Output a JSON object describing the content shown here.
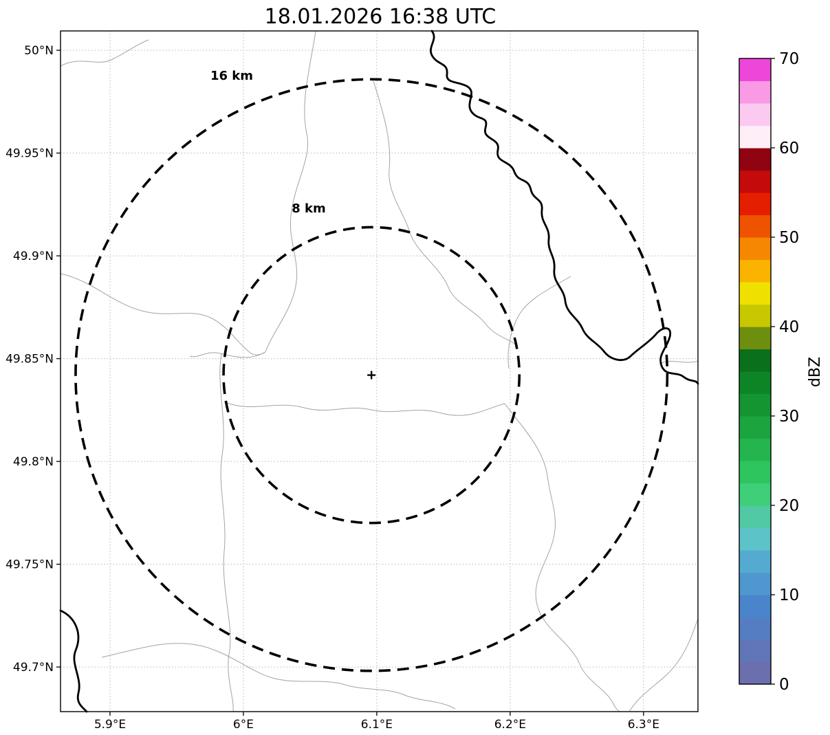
{
  "chart_data": {
    "type": "map",
    "title": "18.01.2026 16:38 UTC",
    "grid": true,
    "x_axis": {
      "tick_labels": [
        "5.9°E",
        "6°E",
        "6.1°E",
        "6.2°E",
        "6.3°E"
      ],
      "tick_values": [
        5.9,
        6.0,
        6.1,
        6.2,
        6.3
      ],
      "range": [
        5.8629,
        6.3408
      ]
    },
    "y_axis": {
      "tick_labels": [
        "49.7°N",
        "49.75°N",
        "49.8°N",
        "49.85°N",
        "49.9°N",
        "49.95°N",
        "50°N"
      ],
      "tick_values": [
        49.7,
        49.75,
        49.8,
        49.85,
        49.9,
        49.95,
        50.0
      ],
      "range": [
        49.6783,
        50.0094
      ]
    },
    "radar_center": {
      "lon": 6.096,
      "lat": 49.842,
      "marker": "+"
    },
    "range_rings": [
      {
        "label": "8 km",
        "radius_km": 8
      },
      {
        "label": "16 km",
        "radius_km": 16
      }
    ],
    "colorbar": {
      "label": "dBZ",
      "min": 0,
      "max": 70,
      "tick_values": [
        0,
        10,
        20,
        30,
        40,
        50,
        60,
        70
      ],
      "tick_labels": [
        "0",
        "10",
        "20",
        "30",
        "40",
        "50",
        "60",
        "70"
      ],
      "colors": [
        "#6b6fae",
        "#6076b8",
        "#557dc2",
        "#4a85cc",
        "#4f97cf",
        "#55aad2",
        "#5cc3c8",
        "#50c9a4",
        "#3fcf78",
        "#2ec55e",
        "#25b54e",
        "#1ca53f",
        "#149532",
        "#0d8527",
        "#0a701c",
        "#6e8f0e",
        "#c8c800",
        "#f0e000",
        "#fab400",
        "#f58800",
        "#ee5400",
        "#e61e00",
        "#c40a0a",
        "#8f0410",
        "#fdeef8",
        "#fccaf0",
        "#f89ae6",
        "#ef46da"
      ]
    }
  },
  "map": {
    "boundary_paths": [
      "M 88 96 C 118 80 142 98 164 86 C 184 76 200 64 216 58",
      "M 459 45 C 452 95 436 148 446 194 C 454 230 428 266 423 314 C 419 352 437 380 430 416 C 424 452 398 480 386 512",
      "M 386 512 C 362 526 338 518 320 514 C 300 509 288 522 276 518",
      "M 88 398 C 134 408 162 440 206 452 C 246 463 276 448 306 462 C 332 474 346 500 364 513 C 372 519 380 515 386 512",
      "M 330 586 C 370 600 402 582 442 593 C 480 603 502 588 540 596 C 576 604 602 590 642 601 C 682 611 702 596 734 587",
      "M 322 515 C 314 560 331 612 323 662 C 316 706 331 752 326 802 C 321 856 341 912 333 952 C 328 986 341 1016 339 1035",
      "M 148 956 C 200 944 242 930 286 938 C 330 946 362 976 396 986 C 432 996 470 986 502 996 C 532 1005 562 1000 586 1010 C 612 1021 640 1018 662 1031",
      "M 543 118 C 558 165 570 206 566 246 C 563 281 586 306 596 338 C 606 368 640 388 652 418 C 661 441 692 452 707 472 C 721 490 740 492 752 503",
      "M 830 402 C 800 420 772 432 756 456 C 744 476 736 506 740 536",
      "M 734 587 C 760 622 790 652 796 692 C 801 732 816 756 801 796 C 789 829 771 852 783 886 C 793 916 831 936 843 966 C 853 991 881 1002 891 1022 C 897 1033 900 1035 902 1035",
      "M 962 528 C 978 521 996 531 1015 525",
      "M 915 1035 C 936 1002 966 992 986 962 C 1000 944 1009 916 1015 900"
    ],
    "river_paths": [
      "M 628 45 C 638 58 620 68 629 82 C 637 95 652 91 650 108 C 648 122 667 118 680 126 C 694 135 676 150 686 163 C 696 176 711 168 706 186 C 701 204 728 200 724 218 C 720 238 742 232 748 250 C 754 266 768 258 772 276 C 776 292 790 288 788 306 C 786 324 800 330 798 348 C 796 366 808 372 806 392 C 804 412 820 418 822 438 C 824 456 840 462 847 478 C 854 494 869 498 879 512 C 889 524 907 528 917 518 C 927 508 944 498 954 486 C 964 474 978 474 974 490 C 970 506 956 516 962 532 C 968 548 984 540 994 548 C 1004 556 1012 552 1015 558",
      "M 88 888 C 110 898 120 922 110 946 C 102 966 120 986 114 1008 C 110 1024 122 1030 126 1035"
    ]
  }
}
